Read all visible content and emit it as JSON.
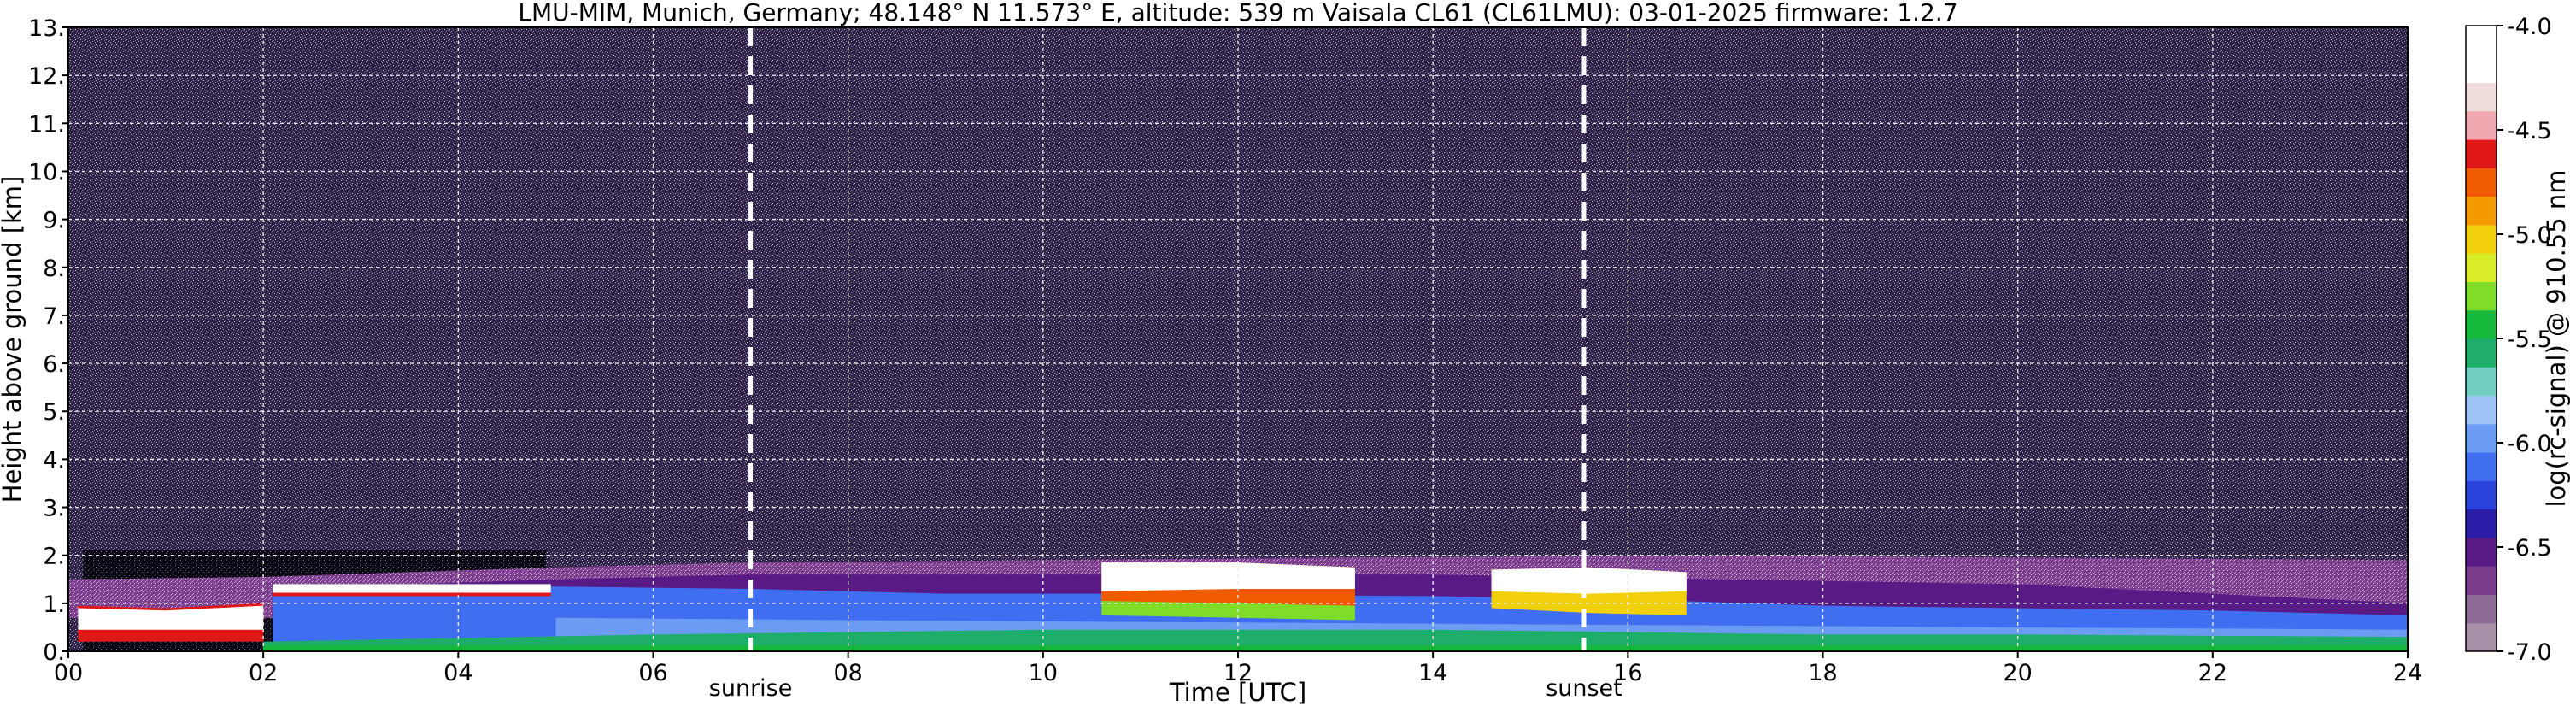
{
  "chart_data": {
    "type": "heatmap",
    "title": "LMU-MIM, Munich, Germany; 48.148° N 11.573° E, altitude: 539 m    Vaisala CL61 (CL61LMU): 03-01-2025    firmware: 1.2.7",
    "xlabel": "Time [UTC]",
    "ylabel": "Height above ground [km]",
    "xlim": [
      0,
      24
    ],
    "ylim": [
      0,
      13
    ],
    "x_ticks": [
      0,
      2,
      4,
      6,
      8,
      10,
      12,
      14,
      16,
      18,
      20,
      22,
      24
    ],
    "x_tick_labels": [
      "00",
      "02",
      "04",
      "06",
      "08",
      "10",
      "12",
      "14",
      "16",
      "18",
      "20",
      "22",
      "24"
    ],
    "y_ticks": [
      0,
      1,
      2,
      3,
      4,
      5,
      6,
      7,
      8,
      9,
      10,
      11,
      12,
      13
    ],
    "y_tick_labels": [
      "0.",
      "1.",
      "2.",
      "3.",
      "4.",
      "5.",
      "6.",
      "7.",
      "8.",
      "9.",
      "10.",
      "11.",
      "12.",
      "13."
    ],
    "grid": true,
    "annotations": [
      {
        "label": "sunrise",
        "x": 7.0
      },
      {
        "label": "sunset",
        "x": 15.55
      }
    ],
    "colorbar": {
      "label": "log(rc-signal) @ 910.55 nm",
      "range": [
        -7.0,
        -4.0
      ],
      "ticks": [
        -7.0,
        -6.5,
        -6.0,
        -5.5,
        -5.0,
        -4.5,
        -4.0
      ],
      "tick_labels": [
        "-7.0",
        "-6.5",
        "-6.0",
        "-5.5",
        "-5.0",
        "-4.5",
        "-4.0"
      ],
      "colors": [
        "#a890a8",
        "#8e6a96",
        "#7a3d8e",
        "#5a1a86",
        "#2a1ea8",
        "#2a43dc",
        "#3f6ff0",
        "#6c9bf4",
        "#9fc3f5",
        "#70cfc0",
        "#1fae6a",
        "#15b83a",
        "#7fdc28",
        "#d8ec28",
        "#f3d00c",
        "#f49a00",
        "#f05a00",
        "#e01818",
        "#f0a8b0",
        "#f1dcdc",
        "#ffffff",
        "#ffffff"
      ]
    },
    "layers": [
      {
        "name": "noise_background",
        "color": "#3a2a4e"
      },
      {
        "name": "boundary_layer",
        "color": "#3f6ff0"
      },
      {
        "name": "cloud_layer",
        "color": "#ffffff"
      }
    ]
  }
}
